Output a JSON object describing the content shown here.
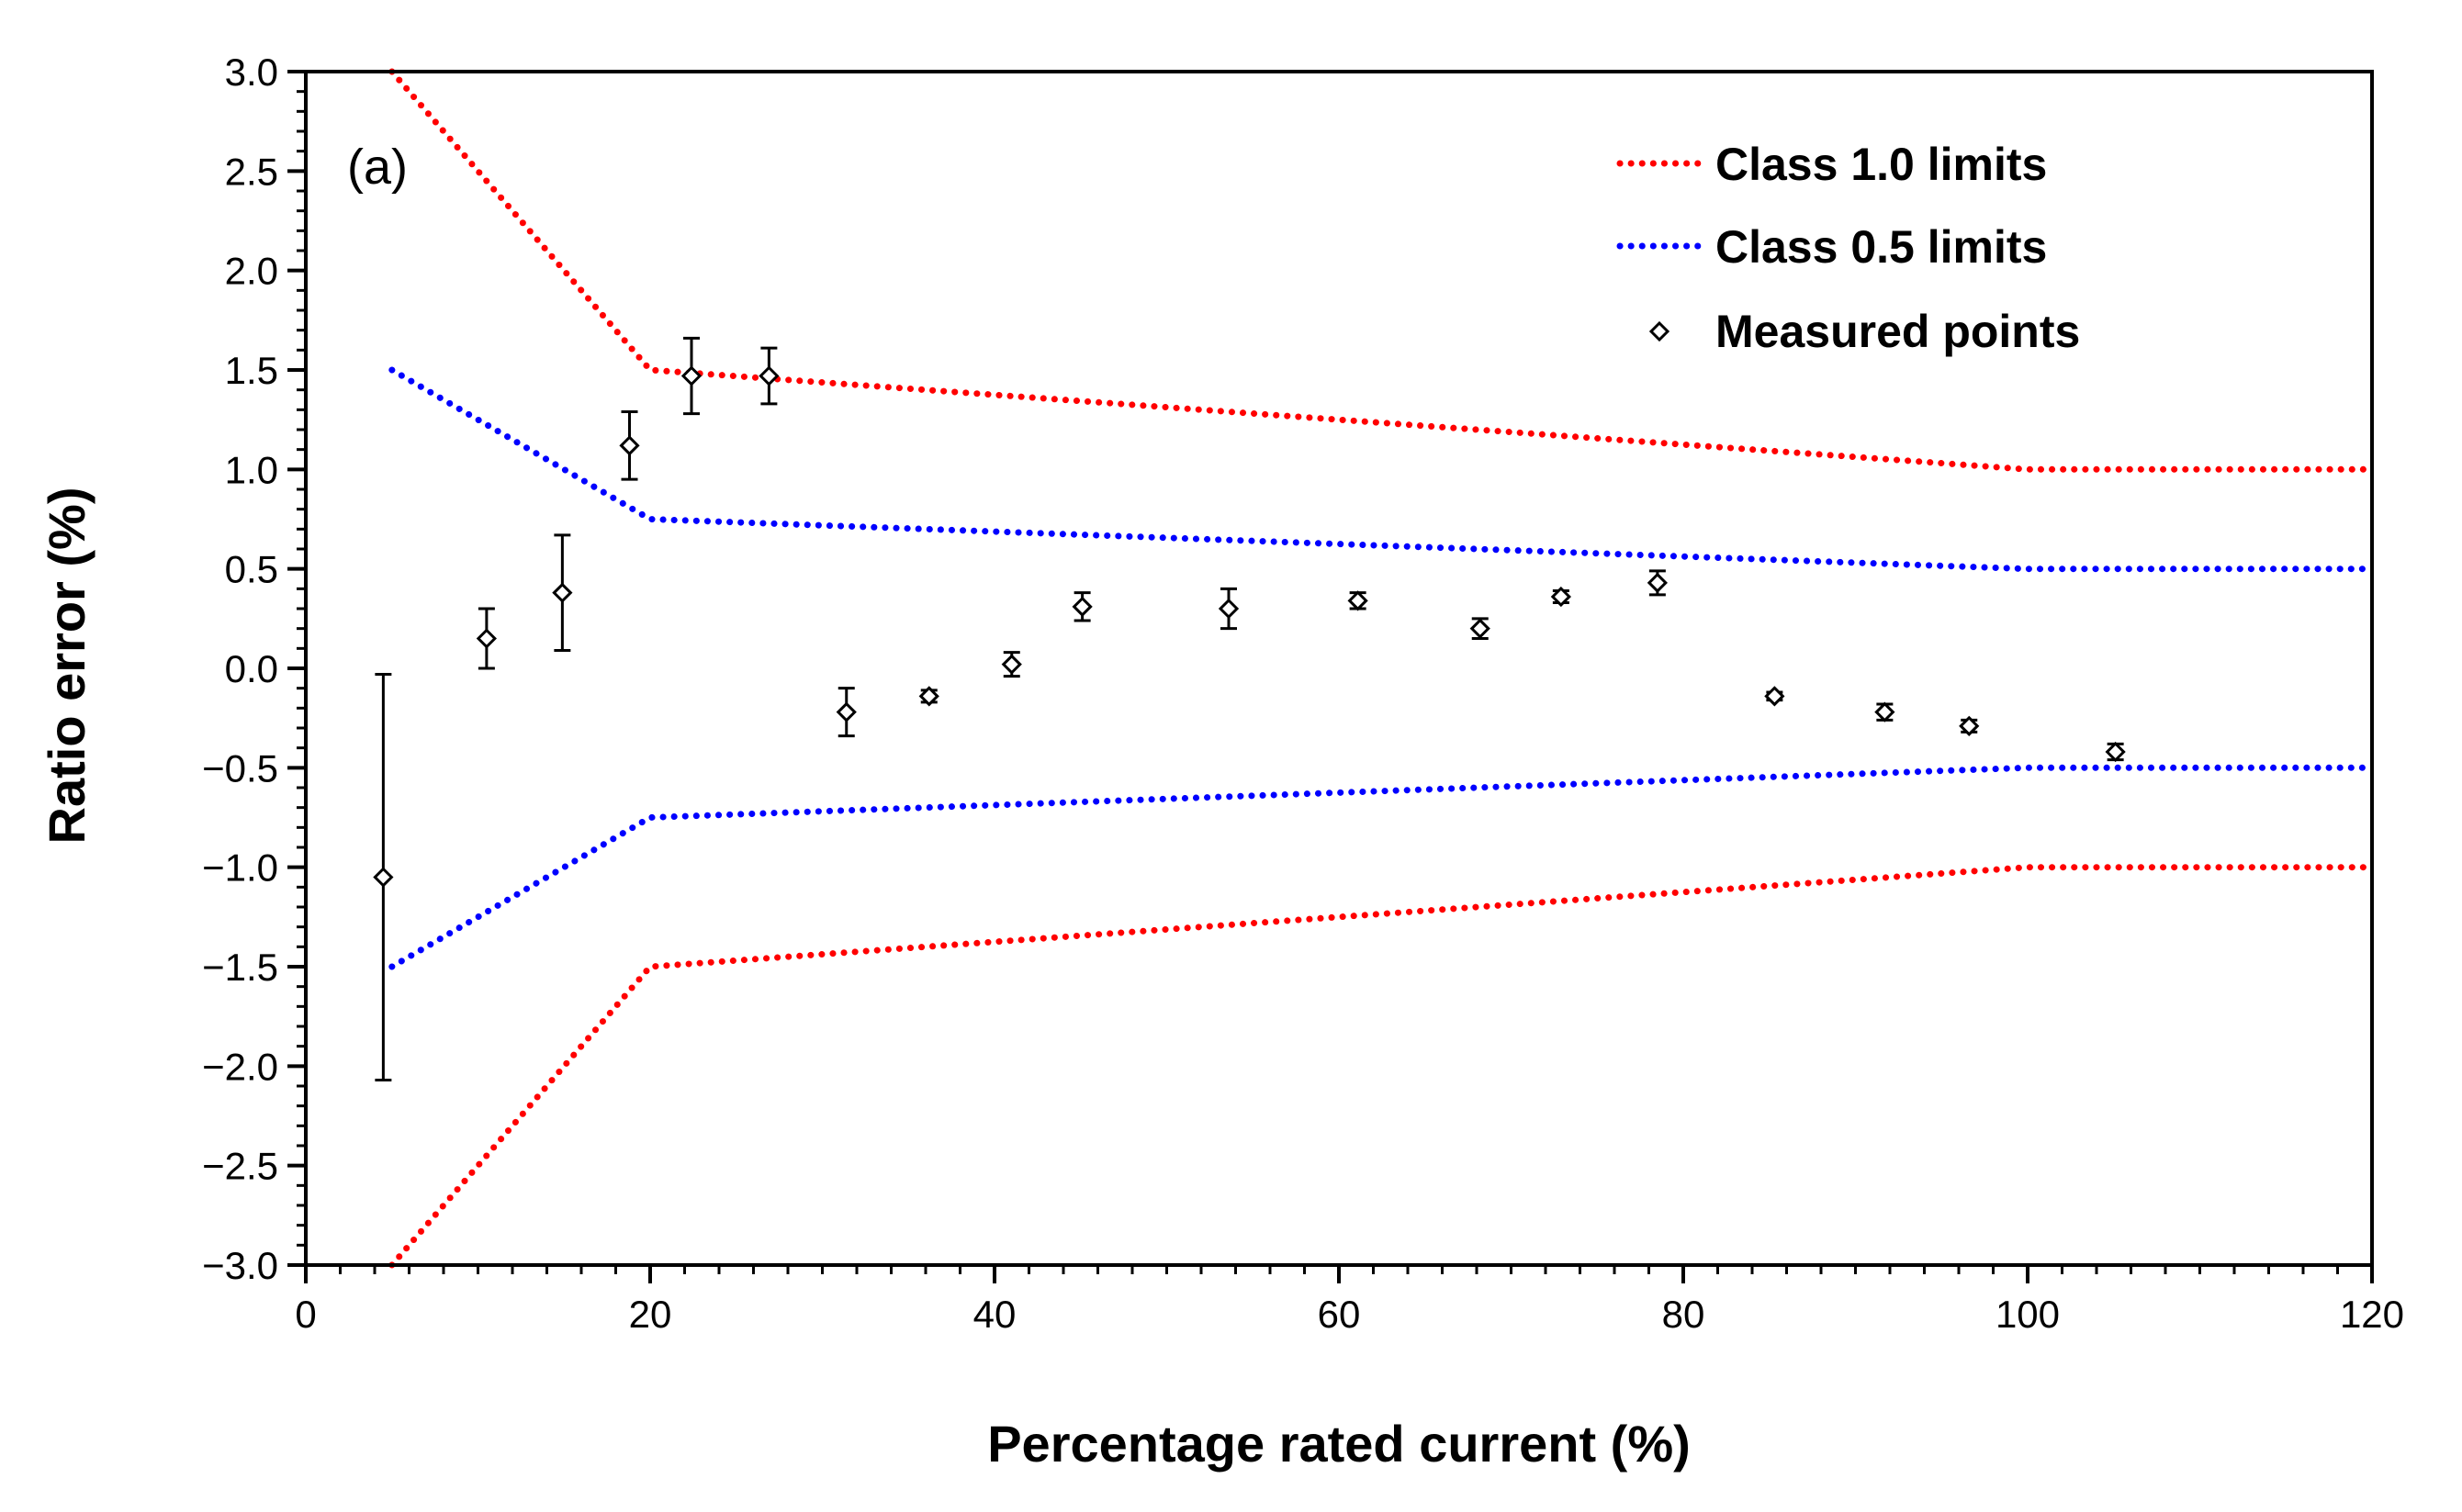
{
  "chart_data": {
    "type": "scatter",
    "panel_label": "(a)",
    "xlabel": "Percentage rated current (%)",
    "ylabel": "Ratio error (%)",
    "xlim": [
      0,
      120
    ],
    "ylim": [
      -3.0,
      3.0
    ],
    "x_ticks": [
      0,
      20,
      40,
      60,
      80,
      100,
      120
    ],
    "x_tick_labels": [
      "0",
      "20",
      "40",
      "60",
      "80",
      "100",
      "120"
    ],
    "y_ticks": [
      3.0,
      2.5,
      2.0,
      1.5,
      1.0,
      0.5,
      0.0,
      -0.5,
      -1.0,
      -1.5,
      -2.0,
      -2.5,
      -3.0
    ],
    "y_tick_labels": [
      "3.0",
      "2.5",
      "2.0",
      "1.5",
      "1.0",
      "0.5",
      "0.0",
      "−0.5",
      "−1.0",
      "−1.5",
      "−2.0",
      "−2.5",
      "−3.0"
    ],
    "x_minor_step": 2,
    "y_minor_step": 0.1,
    "legend_position": "top-right",
    "series": [
      {
        "name": "Class 1.0 limits",
        "kind": "dotted-line",
        "color": "#ff0000",
        "upper": [
          [
            5,
            3.0
          ],
          [
            20,
            1.5
          ],
          [
            100,
            1.0
          ],
          [
            120,
            1.0
          ]
        ],
        "lower": [
          [
            5,
            -3.0
          ],
          [
            20,
            -1.5
          ],
          [
            100,
            -1.0
          ],
          [
            120,
            -1.0
          ]
        ]
      },
      {
        "name": "Class 0.5 limits",
        "kind": "dotted-line",
        "color": "#0000ff",
        "upper": [
          [
            5,
            1.5
          ],
          [
            20,
            0.75
          ],
          [
            100,
            0.5
          ],
          [
            120,
            0.5
          ]
        ],
        "lower": [
          [
            5,
            -1.5
          ],
          [
            20,
            -0.75
          ],
          [
            100,
            -0.5
          ],
          [
            120,
            -0.5
          ]
        ]
      },
      {
        "name": "Measured points",
        "kind": "markers",
        "color": "#000000",
        "points": [
          {
            "x": 4.5,
            "y": -1.05,
            "err": 1.02
          },
          {
            "x": 10.5,
            "y": 0.15,
            "err": 0.15
          },
          {
            "x": 14.9,
            "y": 0.38,
            "err": 0.29
          },
          {
            "x": 18.8,
            "y": 1.12,
            "err": 0.17
          },
          {
            "x": 22.4,
            "y": 1.47,
            "err": 0.19
          },
          {
            "x": 26.9,
            "y": 1.47,
            "err": 0.14
          },
          {
            "x": 31.4,
            "y": -0.22,
            "err": 0.12
          },
          {
            "x": 36.2,
            "y": -0.14,
            "err": 0.03
          },
          {
            "x": 41.0,
            "y": 0.02,
            "err": 0.06
          },
          {
            "x": 45.1,
            "y": 0.31,
            "err": 0.07
          },
          {
            "x": 53.6,
            "y": 0.3,
            "err": 0.1
          },
          {
            "x": 61.1,
            "y": 0.34,
            "err": 0.04
          },
          {
            "x": 68.2,
            "y": 0.2,
            "err": 0.05
          },
          {
            "x": 72.9,
            "y": 0.36,
            "err": 0.03
          },
          {
            "x": 78.5,
            "y": 0.43,
            "err": 0.06
          },
          {
            "x": 85.3,
            "y": -0.14,
            "err": 0.02
          },
          {
            "x": 91.7,
            "y": -0.22,
            "err": 0.04
          },
          {
            "x": 96.6,
            "y": -0.29,
            "err": 0.03
          },
          {
            "x": 105.1,
            "y": -0.42,
            "err": 0.04
          }
        ]
      }
    ]
  }
}
